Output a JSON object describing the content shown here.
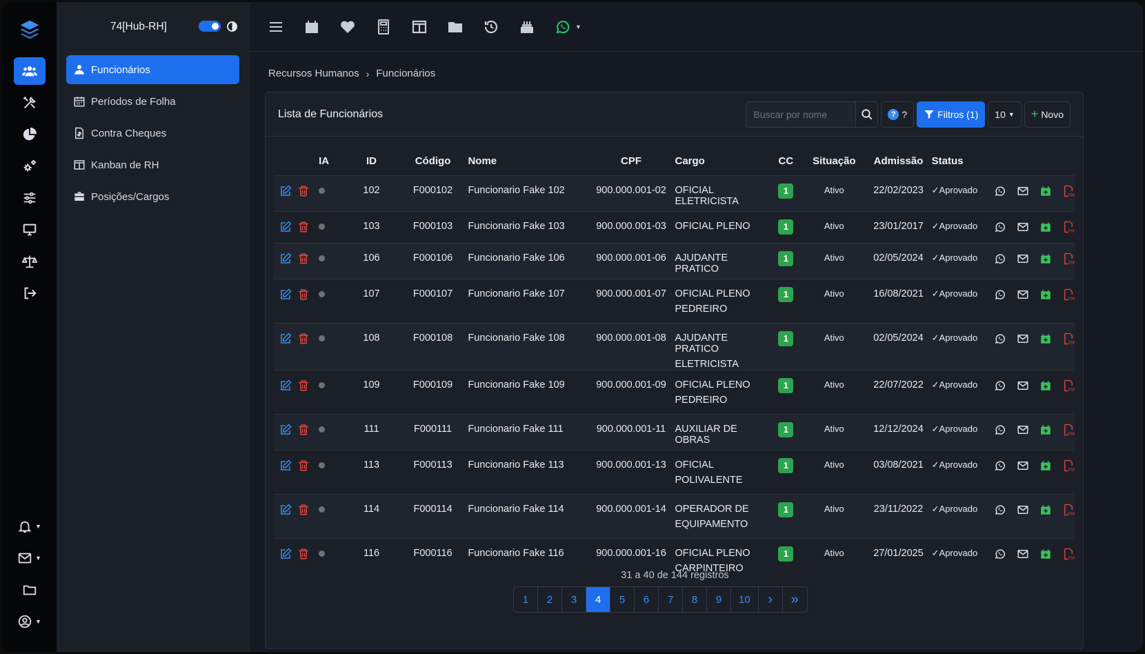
{
  "sidebar": {
    "workspace": "74[Hub-RH]",
    "items": [
      {
        "label": "Funcionários",
        "active": true
      },
      {
        "label": "Períodos de Folha"
      },
      {
        "label": "Contra Cheques"
      },
      {
        "label": "Kanban de RH"
      },
      {
        "label": "Posições/Cargos"
      }
    ]
  },
  "breadcrumb": {
    "parent": "Recursos Humanos",
    "current": "Funcionários"
  },
  "card": {
    "title": "Lista de Funcionários",
    "search_placeholder": "Buscar por nome",
    "help_label": "?",
    "filters_label": "Filtros (1)",
    "per_page": "10",
    "new_label": "Novo"
  },
  "table": {
    "headers": [
      "IA",
      "ID",
      "Código",
      "Nome",
      "CPF",
      "Cargo",
      "CC",
      "Situação",
      "Admissão",
      "Status"
    ],
    "rows": [
      {
        "id": "102",
        "codigo": "F000102",
        "nome": "Funcionario Fake 102",
        "cpf": "900.000.001-02",
        "cargo": "OFICIAL ELETRICISTA",
        "cargo2": "",
        "cc": "1",
        "situacao": "Ativo",
        "admissao": "22/02/2023",
        "status": "Aprovado"
      },
      {
        "id": "103",
        "codigo": "F000103",
        "nome": "Funcionario Fake 103",
        "cpf": "900.000.001-03",
        "cargo": "OFICIAL PLENO",
        "cargo2": "",
        "cc": "1",
        "situacao": "Ativo",
        "admissao": "23/01/2017",
        "status": "Aprovado"
      },
      {
        "id": "106",
        "codigo": "F000106",
        "nome": "Funcionario Fake 106",
        "cpf": "900.000.001-06",
        "cargo": "AJUDANTE PRATICO",
        "cargo2": "",
        "cc": "1",
        "situacao": "Ativo",
        "admissao": "02/05/2024",
        "status": "Aprovado"
      },
      {
        "id": "107",
        "codigo": "F000107",
        "nome": "Funcionario Fake 107",
        "cpf": "900.000.001-07",
        "cargo": "OFICIAL PLENO",
        "cargo2": "PEDREIRO",
        "cc": "1",
        "situacao": "Ativo",
        "admissao": "16/08/2021",
        "status": "Aprovado"
      },
      {
        "id": "108",
        "codigo": "F000108",
        "nome": "Funcionario Fake 108",
        "cpf": "900.000.001-08",
        "cargo": "AJUDANTE PRATICO",
        "cargo2": "ELETRICISTA",
        "cc": "1",
        "situacao": "Ativo",
        "admissao": "02/05/2024",
        "status": "Aprovado"
      },
      {
        "id": "109",
        "codigo": "F000109",
        "nome": "Funcionario Fake 109",
        "cpf": "900.000.001-09",
        "cargo": "OFICIAL PLENO",
        "cargo2": "PEDREIRO",
        "cc": "1",
        "situacao": "Ativo",
        "admissao": "22/07/2022",
        "status": "Aprovado"
      },
      {
        "id": "111",
        "codigo": "F000111",
        "nome": "Funcionario Fake 111",
        "cpf": "900.000.001-11",
        "cargo": "AUXILIAR DE OBRAS",
        "cargo2": "",
        "cc": "1",
        "situacao": "Ativo",
        "admissao": "12/12/2024",
        "status": "Aprovado"
      },
      {
        "id": "113",
        "codigo": "F000113",
        "nome": "Funcionario Fake 113",
        "cpf": "900.000.001-13",
        "cargo": "OFICIAL",
        "cargo2": "POLIVALENTE",
        "cc": "1",
        "situacao": "Ativo",
        "admissao": "03/08/2021",
        "status": "Aprovado"
      },
      {
        "id": "114",
        "codigo": "F000114",
        "nome": "Funcionario Fake 114",
        "cpf": "900.000.001-14",
        "cargo": "OPERADOR DE",
        "cargo2": "EQUIPAMENTO",
        "cc": "1",
        "situacao": "Ativo",
        "admissao": "23/11/2022",
        "status": "Aprovado"
      },
      {
        "id": "116",
        "codigo": "F000116",
        "nome": "Funcionario Fake 116",
        "cpf": "900.000.001-16",
        "cargo": "OFICIAL PLENO",
        "cargo2": "CARPINTEIRO",
        "cc": "1",
        "situacao": "Ativo",
        "admissao": "27/01/2025",
        "status": "Aprovado"
      }
    ]
  },
  "footer": {
    "summary": "31 a 40 de 144 registros"
  },
  "pagination": {
    "pages": [
      "1",
      "2",
      "3",
      "4",
      "5",
      "6",
      "7",
      "8",
      "9",
      "10"
    ],
    "current": "4",
    "next": "›",
    "last": "»"
  },
  "colors": {
    "accent": "#1d6fee",
    "success": "#2ea44f",
    "danger": "#e5443b",
    "whatsapp": "#25c16f"
  }
}
